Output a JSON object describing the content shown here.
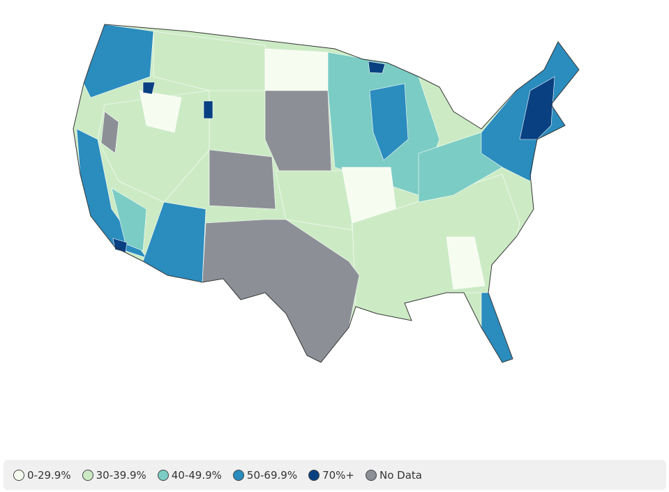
{
  "legend": {
    "items": [
      {
        "label": "0-29.9%",
        "color": "#f7fcf0"
      },
      {
        "label": "30-39.9%",
        "color": "#ccebc5"
      },
      {
        "label": "40-49.9%",
        "color": "#7bccc4"
      },
      {
        "label": "50-69.9%",
        "color": "#2b8cbe"
      },
      {
        "label": "70%+",
        "color": "#084081"
      },
      {
        "label": "No Data",
        "color": "#8c9096"
      }
    ]
  }
}
